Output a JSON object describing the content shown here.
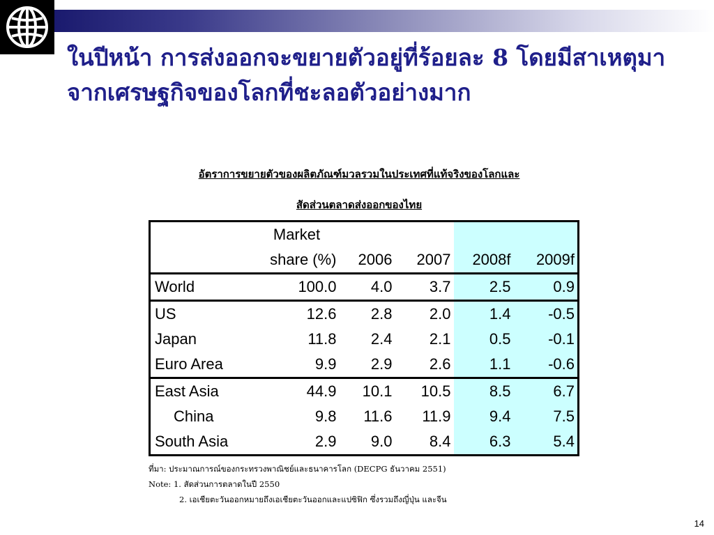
{
  "slide": {
    "title_line1": "ในปีหน้า การส่งออกจะขยายตัวอยู่ที่ร้อยละ 8 โดยมีสาเหตุมา",
    "title_line2": "จากเศรษฐกิจของโลกที่ชะลอตัวอย่างมาก",
    "table_title_line1": "อัตราการขยายตัวของผลิตภัณฑ์มวลรวมในประเทศที่แท้จริงของโลกและ",
    "table_title_line2": "สัดส่วนตลาดส่งออกของไทย",
    "page_number": "14"
  },
  "table": {
    "header": {
      "market_line1": "Market",
      "market_line2": "share (%)",
      "years": [
        "2006",
        "2007",
        "2008f",
        "2009f"
      ]
    },
    "rows": [
      {
        "name": "World",
        "share": "100.0",
        "v2006": "4.0",
        "v2007": "3.7",
        "v2008f": "2.5",
        "v2009f": "0.9"
      },
      {
        "name": "US",
        "share": "12.6",
        "v2006": "2.8",
        "v2007": "2.0",
        "v2008f": "1.4",
        "v2009f": "-0.5"
      },
      {
        "name": "Japan",
        "share": "11.8",
        "v2006": "2.4",
        "v2007": "2.1",
        "v2008f": "0.5",
        "v2009f": "-0.1"
      },
      {
        "name": "Euro Area",
        "share": "9.9",
        "v2006": "2.9",
        "v2007": "2.6",
        "v2008f": "1.1",
        "v2009f": "-0.6"
      },
      {
        "name": "East Asia",
        "share": "44.9",
        "v2006": "10.1",
        "v2007": "10.5",
        "v2008f": "8.5",
        "v2009f": "6.7"
      },
      {
        "name": "China",
        "share": "9.8",
        "v2006": "11.6",
        "v2007": "11.9",
        "v2008f": "9.4",
        "v2009f": "7.5"
      },
      {
        "name": "South Asia",
        "share": "2.9",
        "v2006": "9.0",
        "v2007": "8.4",
        "v2008f": "6.3",
        "v2009f": "5.4"
      }
    ]
  },
  "notes": {
    "source": "ที่มา: ประมาณการณ์ของกระทรวงพาณิชย์และธนาคารโลก (DECPG ธันวาคม 2551)",
    "note1": "Note: 1. สัดส่วนการตลาดในปี 2550",
    "note2": "2. เอเชียตะวันออกหมายถึงเอเชียตะวันออกและแปซิฟิก ซึ่งรวมถึงญี่ปุ่น และจีน"
  },
  "colors": {
    "title": "#1f1f8a",
    "forecast_bg": "#ccffff",
    "top_bar": "#1a1a6e"
  },
  "icons": [
    "world-bank-globe-logo"
  ]
}
